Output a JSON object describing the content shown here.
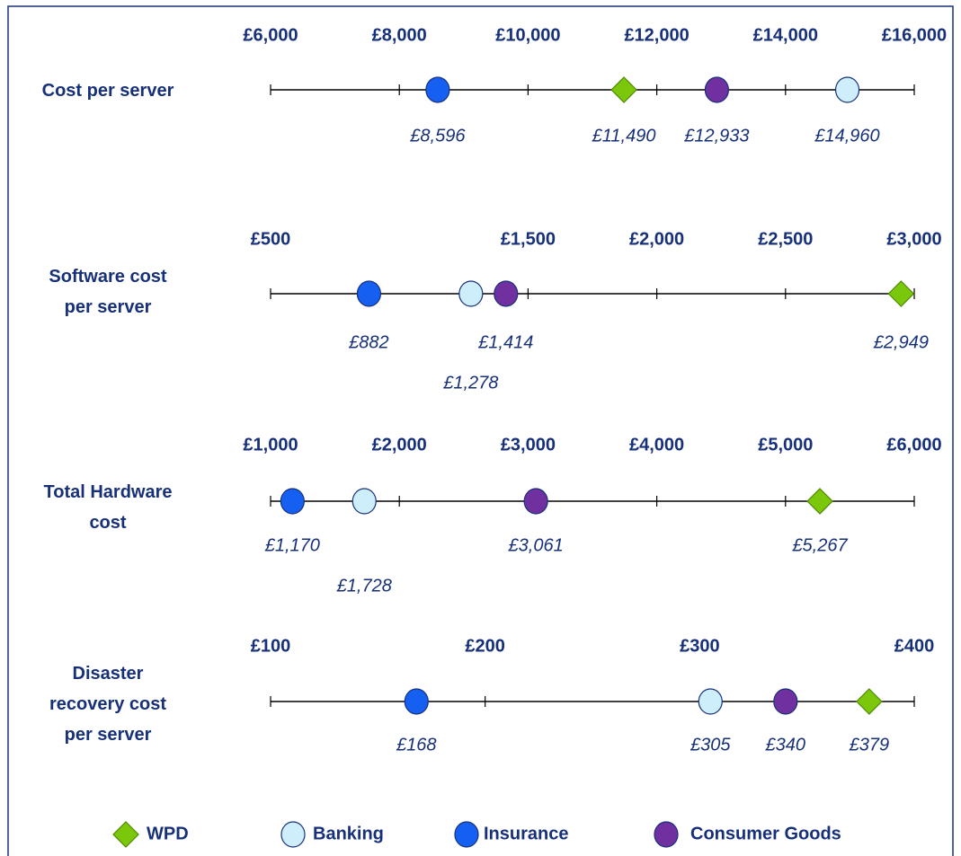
{
  "chart_data": [
    {
      "type": "dot",
      "title": "Cost per server",
      "xlim": [
        6000,
        16000
      ],
      "xticks": [
        {
          "value": 6000,
          "label": "£6,000"
        },
        {
          "value": 8000,
          "label": "£8,000"
        },
        {
          "value": 10000,
          "label": "£10,000"
        },
        {
          "value": 12000,
          "label": "£12,000"
        },
        {
          "value": 14000,
          "label": "£14,000"
        },
        {
          "value": 16000,
          "label": "£16,000"
        }
      ],
      "series": [
        {
          "name": "WPD",
          "color": "#7ac70c",
          "marker": "diamond",
          "values": [
            11490
          ],
          "value_labels": [
            "£11,490"
          ]
        },
        {
          "name": "Banking",
          "color": "#cdeefa",
          "marker": "circle",
          "values": [
            14960
          ],
          "value_labels": [
            "£14,960"
          ]
        },
        {
          "name": "Insurance",
          "color": "#1560f0",
          "marker": "circle",
          "values": [
            8596
          ],
          "value_labels": [
            "£8,596"
          ]
        },
        {
          "name": "Consumer Goods",
          "color": "#7030a0",
          "marker": "circle",
          "values": [
            12933
          ],
          "value_labels": [
            "£12,933"
          ]
        }
      ]
    },
    {
      "type": "dot",
      "title": "Software cost per server",
      "xlim": [
        500,
        3000
      ],
      "xticks": [
        {
          "value": 500,
          "label": "£500"
        },
        {
          "value": 1500,
          "label": "£1,500"
        },
        {
          "value": 2000,
          "label": "£2,000"
        },
        {
          "value": 2500,
          "label": "£2,500"
        },
        {
          "value": 3000,
          "label": "£3,000"
        }
      ],
      "series": [
        {
          "name": "WPD",
          "color": "#7ac70c",
          "marker": "diamond",
          "values": [
            2949
          ],
          "value_labels": [
            "£2,949"
          ]
        },
        {
          "name": "Banking",
          "color": "#cdeefa",
          "marker": "circle",
          "values": [
            1278
          ],
          "value_labels": [
            "£1,278"
          ]
        },
        {
          "name": "Insurance",
          "color": "#1560f0",
          "marker": "circle",
          "values": [
            882
          ],
          "value_labels": [
            "£882"
          ]
        },
        {
          "name": "Consumer Goods",
          "color": "#7030a0",
          "marker": "circle",
          "values": [
            1414
          ],
          "value_labels": [
            "£1,414"
          ]
        }
      ]
    },
    {
      "type": "dot",
      "title": "Total Hardware cost",
      "xlim": [
        1000,
        6000
      ],
      "xticks": [
        {
          "value": 1000,
          "label": "£1,000"
        },
        {
          "value": 2000,
          "label": "£2,000"
        },
        {
          "value": 3000,
          "label": "£3,000"
        },
        {
          "value": 4000,
          "label": "£4,000"
        },
        {
          "value": 5000,
          "label": "£5,000"
        },
        {
          "value": 6000,
          "label": "£6,000"
        }
      ],
      "series": [
        {
          "name": "WPD",
          "color": "#7ac70c",
          "marker": "diamond",
          "values": [
            5267
          ],
          "value_labels": [
            "£5,267"
          ]
        },
        {
          "name": "Banking",
          "color": "#cdeefa",
          "marker": "circle",
          "values": [
            1728
          ],
          "value_labels": [
            "£1,728"
          ]
        },
        {
          "name": "Insurance",
          "color": "#1560f0",
          "marker": "circle",
          "values": [
            1170
          ],
          "value_labels": [
            "£1,170"
          ]
        },
        {
          "name": "Consumer Goods",
          "color": "#7030a0",
          "marker": "circle",
          "values": [
            3061
          ],
          "value_labels": [
            "£3,061"
          ]
        }
      ]
    },
    {
      "type": "dot",
      "title": "Disaster recovery cost per server",
      "xlim": [
        100,
        400
      ],
      "xticks": [
        {
          "value": 100,
          "label": "£100"
        },
        {
          "value": 200,
          "label": "£200"
        },
        {
          "value": 300,
          "label": "£300"
        },
        {
          "value": 400,
          "label": "£400"
        }
      ],
      "series": [
        {
          "name": "WPD",
          "color": "#7ac70c",
          "marker": "diamond",
          "values": [
            379
          ],
          "value_labels": [
            "£379"
          ]
        },
        {
          "name": "Banking",
          "color": "#cdeefa",
          "marker": "circle",
          "values": [
            305
          ],
          "value_labels": [
            "£305"
          ]
        },
        {
          "name": "Insurance",
          "color": "#1560f0",
          "marker": "circle",
          "values": [
            168
          ],
          "value_labels": [
            "£168"
          ]
        },
        {
          "name": "Consumer Goods",
          "color": "#7030a0",
          "marker": "circle",
          "values": [
            340
          ],
          "value_labels": [
            "£340"
          ]
        }
      ]
    }
  ]
}
